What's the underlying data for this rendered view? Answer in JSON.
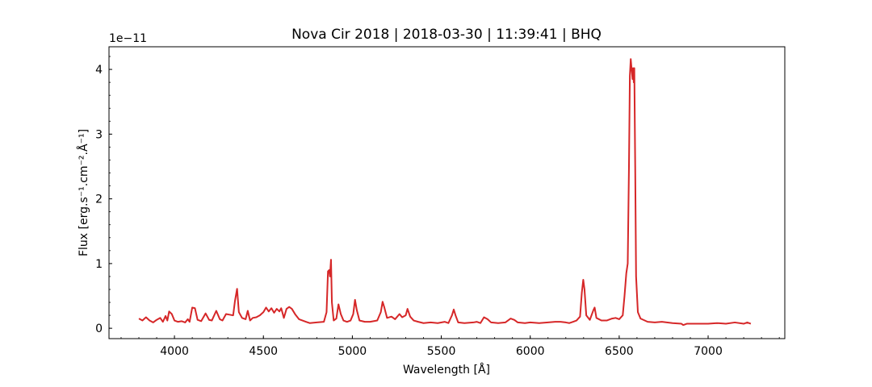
{
  "chart_data": {
    "type": "line",
    "title": "Nova Cir 2018 | 2018-03-30 | 11:39:41 | BHQ",
    "x_label": "Wavelength [Å]",
    "y_label": "Flux [erg.s⁻¹.cm⁻².Å⁻¹]",
    "y_offset_label": "1e−11",
    "color": "#d62728",
    "xlim": [
      3632,
      7431
    ],
    "ylim": [
      -0.16,
      4.35
    ],
    "xticks": [
      4000,
      4500,
      5000,
      5500,
      6000,
      6500,
      7000
    ],
    "yticks": [
      0,
      1,
      2,
      3,
      4
    ],
    "minor_ticks": true,
    "tick_direction": "in",
    "x": [
      3800,
      3820,
      3840,
      3860,
      3880,
      3900,
      3920,
      3935,
      3950,
      3960,
      3970,
      3985,
      4000,
      4020,
      4040,
      4060,
      4075,
      4085,
      4100,
      4115,
      4130,
      4150,
      4175,
      4195,
      4210,
      4235,
      4255,
      4270,
      4290,
      4310,
      4330,
      4340,
      4352,
      4362,
      4380,
      4400,
      4412,
      4425,
      4440,
      4460,
      4480,
      4500,
      4515,
      4530,
      4545,
      4560,
      4575,
      4590,
      4600,
      4615,
      4630,
      4645,
      4660,
      4680,
      4700,
      4720,
      4740,
      4760,
      4800,
      4840,
      4855,
      4863,
      4870,
      4874,
      4880,
      4885,
      4895,
      4910,
      4922,
      4935,
      4950,
      4970,
      4990,
      5005,
      5015,
      5025,
      5040,
      5070,
      5100,
      5140,
      5160,
      5170,
      5180,
      5195,
      5220,
      5240,
      5265,
      5280,
      5300,
      5310,
      5325,
      5345,
      5370,
      5400,
      5440,
      5480,
      5520,
      5540,
      5560,
      5570,
      5580,
      5595,
      5630,
      5680,
      5700,
      5720,
      5740,
      5760,
      5780,
      5820,
      5860,
      5890,
      5910,
      5930,
      5970,
      6000,
      6050,
      6100,
      6140,
      6170,
      6200,
      6220,
      6240,
      6260,
      6280,
      6290,
      6298,
      6305,
      6315,
      6335,
      6355,
      6362,
      6372,
      6400,
      6430,
      6460,
      6480,
      6500,
      6520,
      6530,
      6540,
      6548,
      6555,
      6560,
      6565,
      6570,
      6575,
      6578,
      6582,
      6585,
      6590,
      6595,
      6605,
      6620,
      6660,
      6700,
      6740,
      6800,
      6850,
      6860,
      6880,
      6950,
      7000,
      7050,
      7100,
      7150,
      7200,
      7220,
      7240
    ],
    "values": [
      0.15,
      0.12,
      0.17,
      0.12,
      0.09,
      0.13,
      0.16,
      0.1,
      0.19,
      0.12,
      0.26,
      0.22,
      0.12,
      0.1,
      0.11,
      0.09,
      0.14,
      0.1,
      0.32,
      0.31,
      0.13,
      0.11,
      0.23,
      0.13,
      0.12,
      0.27,
      0.14,
      0.12,
      0.22,
      0.21,
      0.2,
      0.42,
      0.61,
      0.25,
      0.16,
      0.14,
      0.27,
      0.12,
      0.16,
      0.17,
      0.2,
      0.25,
      0.32,
      0.26,
      0.31,
      0.24,
      0.3,
      0.26,
      0.31,
      0.16,
      0.3,
      0.33,
      0.3,
      0.21,
      0.14,
      0.12,
      0.1,
      0.08,
      0.09,
      0.1,
      0.25,
      0.88,
      0.9,
      0.8,
      1.06,
      0.4,
      0.12,
      0.15,
      0.37,
      0.22,
      0.12,
      0.1,
      0.12,
      0.22,
      0.44,
      0.28,
      0.12,
      0.1,
      0.1,
      0.12,
      0.25,
      0.41,
      0.32,
      0.16,
      0.18,
      0.14,
      0.22,
      0.17,
      0.2,
      0.3,
      0.18,
      0.12,
      0.1,
      0.08,
      0.09,
      0.08,
      0.1,
      0.08,
      0.2,
      0.29,
      0.2,
      0.09,
      0.08,
      0.09,
      0.1,
      0.08,
      0.17,
      0.14,
      0.09,
      0.08,
      0.09,
      0.15,
      0.13,
      0.09,
      0.08,
      0.09,
      0.08,
      0.09,
      0.1,
      0.1,
      0.09,
      0.08,
      0.1,
      0.12,
      0.18,
      0.55,
      0.75,
      0.6,
      0.2,
      0.13,
      0.28,
      0.32,
      0.16,
      0.12,
      0.12,
      0.15,
      0.16,
      0.14,
      0.2,
      0.5,
      0.85,
      1.0,
      2.5,
      3.9,
      4.16,
      4.0,
      3.85,
      4.02,
      3.8,
      4.02,
      2.5,
      0.8,
      0.25,
      0.15,
      0.1,
      0.09,
      0.1,
      0.08,
      0.07,
      0.05,
      0.07,
      0.07,
      0.07,
      0.08,
      0.07,
      0.09,
      0.07,
      0.09,
      0.07
    ]
  }
}
